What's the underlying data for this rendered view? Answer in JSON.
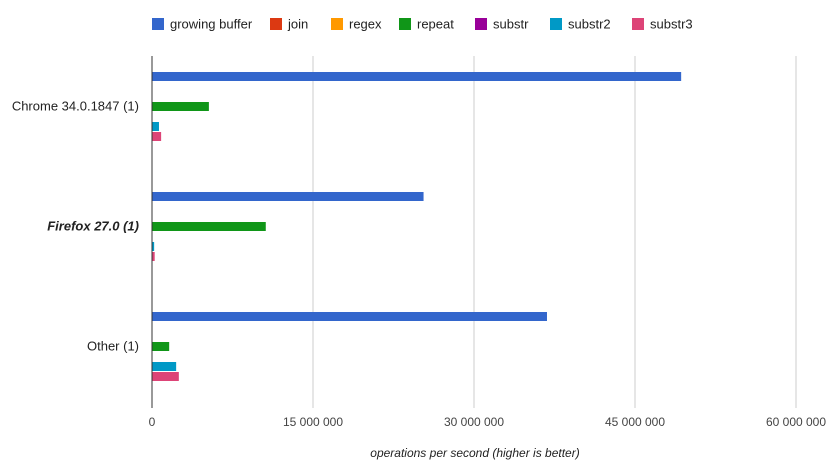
{
  "chart_data": {
    "type": "bar",
    "orientation": "horizontal",
    "title": "",
    "xlabel": "operations per second (higher is better)",
    "ylabel": "",
    "xlim": [
      0,
      60000000
    ],
    "x_ticks": [
      0,
      15000000,
      30000000,
      45000000,
      60000000
    ],
    "x_tick_labels": [
      "0",
      "15 000 000",
      "30 000 000",
      "45 000 000",
      "60 000 000"
    ],
    "grid": true,
    "legend_position": "top",
    "categories": [
      "Chrome 34.0.1847 (1)",
      "Firefox 27.0 (1)",
      "Other (1)"
    ],
    "highlighted_category": "Firefox 27.0 (1)",
    "series": [
      {
        "name": "growing buffer",
        "color": "#3366cc",
        "values": [
          49300000,
          25300000,
          36800000
        ]
      },
      {
        "name": "join",
        "color": "#dc3912",
        "values": [
          0,
          0,
          0
        ]
      },
      {
        "name": "regex",
        "color": "#ff9900",
        "values": [
          0,
          0,
          0
        ]
      },
      {
        "name": "repeat",
        "color": "#109618",
        "values": [
          5300000,
          10600000,
          1600000
        ]
      },
      {
        "name": "substr",
        "color": "#990099",
        "values": [
          0,
          0,
          0
        ]
      },
      {
        "name": "substr2",
        "color": "#0099c6",
        "values": [
          650000,
          200000,
          2250000
        ]
      },
      {
        "name": "substr3",
        "color": "#dd4477",
        "values": [
          850000,
          250000,
          2500000
        ]
      }
    ]
  }
}
